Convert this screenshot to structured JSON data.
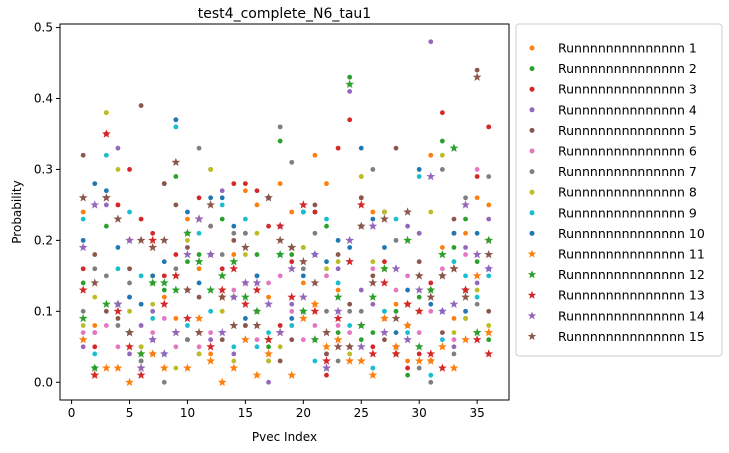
{
  "chart_data": {
    "type": "scatter",
    "title": "test4_complete_N6_tau1",
    "xlabel": "Pvec Index",
    "ylabel": "Probability",
    "xlim": [
      -1.0,
      37.75
    ],
    "ylim": [
      -0.025,
      0.505
    ],
    "xticks": [
      0,
      5,
      10,
      15,
      20,
      25,
      30,
      35
    ],
    "yticks": [
      0.0,
      0.1,
      0.2,
      0.3,
      0.4,
      0.5
    ],
    "xtick_labels": [
      "0",
      "5",
      "10",
      "15",
      "20",
      "25",
      "30",
      "35"
    ],
    "ytick_labels": [
      "0.0",
      "0.1",
      "0.2",
      "0.3",
      "0.4",
      "0.5"
    ],
    "grid": false,
    "legend_position": "outside-right",
    "x": [
      1,
      2,
      3,
      4,
      5,
      6,
      7,
      8,
      9,
      10,
      11,
      12,
      13,
      14,
      15,
      16,
      17,
      18,
      19,
      20,
      21,
      22,
      23,
      24,
      25,
      26,
      27,
      28,
      29,
      30,
      31,
      32,
      33,
      34,
      35,
      36
    ],
    "series": [
      {
        "name": "Runnnnnnnnnnnnnn 1",
        "color": "#ff7f0e",
        "values": [
          0.24,
          0.08,
          0.38,
          0.25,
          0.2,
          0.04,
          0.15,
          0.12,
          0.09,
          0.23,
          0.16,
          0.04,
          0.12,
          0.18,
          0.27,
          0.25,
          0.12,
          0.28,
          0.24,
          0.14,
          0.32,
          0.28,
          0.13,
          0.05,
          0.29,
          0.24,
          0.16,
          0.11,
          0.03,
          0.21,
          0.32,
          0.19,
          0.09,
          0.21,
          0.26,
          0.25
        ]
      },
      {
        "name": "Runnnnnnnnnnnnnn 2",
        "color": "#2ca02c",
        "values": [
          0.14,
          0.02,
          0.22,
          0.11,
          0.07,
          0.03,
          0.14,
          0.13,
          0.29,
          0.17,
          0.18,
          0.3,
          0.23,
          0.12,
          0.08,
          0.18,
          0.05,
          0.34,
          0.18,
          0.1,
          0.24,
          0.22,
          0.07,
          0.43,
          0.06,
          0.07,
          0.24,
          0.1,
          0.01,
          0.12,
          0.13,
          0.34,
          0.19,
          0.23,
          0.17,
          0.06
        ]
      },
      {
        "name": "Runnnnnnnnnnnnnn 3",
        "color": "#d62728",
        "values": [
          0.16,
          0.05,
          0.35,
          0.25,
          0.3,
          0.23,
          0.21,
          0.15,
          0.18,
          0.06,
          0.26,
          0.22,
          0.16,
          0.28,
          0.28,
          0.27,
          0.22,
          0.08,
          0.17,
          0.24,
          0.24,
          0.01,
          0.33,
          0.37,
          0.26,
          0.05,
          0.17,
          0.04,
          0.02,
          0.04,
          0.14,
          0.38,
          0.21,
          0.13,
          0.29,
          0.36
        ]
      },
      {
        "name": "Runnnnnnnnnnnnnn 4",
        "color": "#9467bd",
        "values": [
          0.05,
          0.07,
          0.25,
          0.33,
          0.04,
          0.08,
          0.1,
          0.28,
          0.37,
          0.21,
          0.04,
          0.06,
          0.27,
          0.04,
          0.21,
          0.15,
          0.0,
          0.22,
          0.11,
          0.19,
          0.06,
          0.04,
          0.16,
          0.41,
          0.13,
          0.11,
          0.24,
          0.05,
          0.22,
          0.21,
          0.48,
          0.15,
          0.05,
          0.19,
          0.14,
          0.23
        ]
      },
      {
        "name": "Runnnnnnnnnnnnnn 5",
        "color": "#8c564b",
        "values": [
          0.32,
          0.18,
          0.1,
          0.09,
          0.16,
          0.39,
          0.04,
          0.28,
          0.25,
          0.19,
          0.12,
          0.18,
          0.06,
          0.2,
          0.08,
          0.1,
          0.26,
          0.03,
          0.06,
          0.24,
          0.25,
          0.04,
          0.18,
          0.11,
          0.26,
          0.15,
          0.06,
          0.33,
          0.08,
          0.17,
          0.03,
          0.07,
          0.23,
          0.09,
          0.44,
          0.1
        ]
      },
      {
        "name": "Runnnnnnnnnnnnnn 6",
        "color": "#e377c2",
        "values": [
          0.07,
          0.07,
          0.08,
          0.05,
          0.12,
          0.05,
          0.07,
          0.09,
          0.05,
          0.13,
          0.05,
          0.07,
          0.1,
          0.13,
          0.14,
          0.06,
          0.14,
          0.15,
          0.1,
          0.06,
          0.08,
          0.15,
          0.08,
          0.07,
          0.08,
          0.16,
          0.09,
          0.13,
          0.15,
          0.07,
          0.1,
          0.16,
          0.06,
          0.18,
          0.3,
          0.2
        ]
      },
      {
        "name": "Runnnnnnnnnnnnnn 7",
        "color": "#7f7f7f",
        "values": [
          0.1,
          0.16,
          0.15,
          0.08,
          0.14,
          0.03,
          0.06,
          0.0,
          0.16,
          0.06,
          0.33,
          0.22,
          0.18,
          0.21,
          0.21,
          0.1,
          0.03,
          0.36,
          0.31,
          0.16,
          0.21,
          0.1,
          0.03,
          0.1,
          0.1,
          0.3,
          0.1,
          0.2,
          0.11,
          0.02,
          0.0,
          0.3,
          0.04,
          0.26,
          0.11,
          0.29
        ]
      },
      {
        "name": "Runnnnnnnnnnnnnn 8",
        "color": "#bcbd22",
        "values": [
          0.08,
          0.12,
          0.38,
          0.3,
          0.1,
          0.05,
          0.11,
          0.04,
          0.02,
          0.2,
          0.04,
          0.3,
          0.1,
          0.03,
          0.18,
          0.21,
          0.03,
          0.05,
          0.08,
          0.19,
          0.11,
          0.16,
          0.17,
          0.04,
          0.29,
          0.17,
          0.24,
          0.04,
          0.11,
          0.1,
          0.24,
          0.32,
          0.07,
          0.09,
          0.13,
          0.08
        ]
      },
      {
        "name": "Runnnnnnnnnnnnnn 9",
        "color": "#17becf",
        "values": [
          0.23,
          0.04,
          0.32,
          0.16,
          0.24,
          0.15,
          0.09,
          0.04,
          0.36,
          0.08,
          0.21,
          0.1,
          0.25,
          0.05,
          0.23,
          0.05,
          0.07,
          0.18,
          0.08,
          0.24,
          0.03,
          0.23,
          0.14,
          0.08,
          0.22,
          0.02,
          0.1,
          0.23,
          0.07,
          0.29,
          0.01,
          0.06,
          0.17,
          0.15,
          0.12,
          0.15
        ]
      },
      {
        "name": "Runnnnnnnnnnnnnn 10",
        "color": "#1f77b4",
        "values": [
          0.2,
          0.28,
          0.27,
          0.19,
          0.12,
          0.11,
          0.15,
          0.17,
          0.37,
          0.24,
          0.14,
          0.26,
          0.26,
          0.22,
          0.09,
          0.15,
          0.26,
          0.22,
          0.09,
          0.15,
          0.18,
          0.17,
          0.2,
          0.19,
          0.33,
          0.23,
          0.19,
          0.07,
          0.13,
          0.3,
          0.11,
          0.1,
          0.21,
          0.1,
          0.21,
          0.16
        ]
      },
      {
        "name": "Runnnnnnnnnnnnnn 11",
        "color": "#ff7f0e",
        "values": [
          0.06,
          0.01,
          0.02,
          0.02,
          0.0,
          0.02,
          0.04,
          0.02,
          0.07,
          0.02,
          0.09,
          0.03,
          0.0,
          0.02,
          0.06,
          0.01,
          0.04,
          0.07,
          0.01,
          0.09,
          0.11,
          0.05,
          0.06,
          0.03,
          0.03,
          0.01,
          0.09,
          0.05,
          0.08,
          0.03,
          0.03,
          0.05,
          0.02,
          0.06,
          0.15,
          0.07
        ]
      },
      {
        "name": "Runnnnnnnnnnnnnn 12",
        "color": "#2ca02c",
        "values": [
          0.09,
          0.02,
          0.11,
          0.11,
          0.07,
          0.04,
          0.14,
          0.14,
          0.13,
          0.21,
          0.17,
          0.13,
          0.15,
          0.17,
          0.12,
          0.1,
          0.06,
          0.18,
          0.19,
          0.1,
          0.06,
          0.02,
          0.12,
          0.42,
          0.08,
          0.12,
          0.16,
          0.04,
          0.2,
          0.05,
          0.13,
          0.18,
          0.33,
          0.13,
          0.07,
          0.2
        ]
      },
      {
        "name": "Runnnnnnnnnnnnnn 13",
        "color": "#d62728",
        "values": [
          0.13,
          0.01,
          0.35,
          0.1,
          0.05,
          0.01,
          0.2,
          0.11,
          0.15,
          0.09,
          0.23,
          0.05,
          0.13,
          0.16,
          0.11,
          0.13,
          0.06,
          0.22,
          0.12,
          0.25,
          0.1,
          0.03,
          0.09,
          0.17,
          0.25,
          0.04,
          0.14,
          0.04,
          0.11,
          0.1,
          0.04,
          0.02,
          0.16,
          0.13,
          0.06,
          0.04
        ]
      },
      {
        "name": "Runnnnnnnnnnnnnn 14",
        "color": "#9467bd",
        "values": [
          0.19,
          0.25,
          0.26,
          0.11,
          0.2,
          0.02,
          0.06,
          0.04,
          0.07,
          0.18,
          0.23,
          0.18,
          0.07,
          0.12,
          0.14,
          0.14,
          0.11,
          0.07,
          0.16,
          0.12,
          0.18,
          0.02,
          0.1,
          0.2,
          0.05,
          0.22,
          0.07,
          0.16,
          0.06,
          0.13,
          0.29,
          0.1,
          0.11,
          0.25,
          0.18,
          0.16
        ]
      },
      {
        "name": "Runnnnnnnnnnnnnn 15",
        "color": "#8c564b",
        "values": [
          0.26,
          0.14,
          0.26,
          0.23,
          0.07,
          0.2,
          0.19,
          0.2,
          0.31,
          0.13,
          0.07,
          0.25,
          0.12,
          0.08,
          0.19,
          0.08,
          0.26,
          0.2,
          0.19,
          0.17,
          0.14,
          0.07,
          0.05,
          0.05,
          0.22,
          0.14,
          0.23,
          0.09,
          0.24,
          0.15,
          0.12,
          0.15,
          0.16,
          0.12,
          0.43,
          0.18
        ]
      }
    ]
  }
}
